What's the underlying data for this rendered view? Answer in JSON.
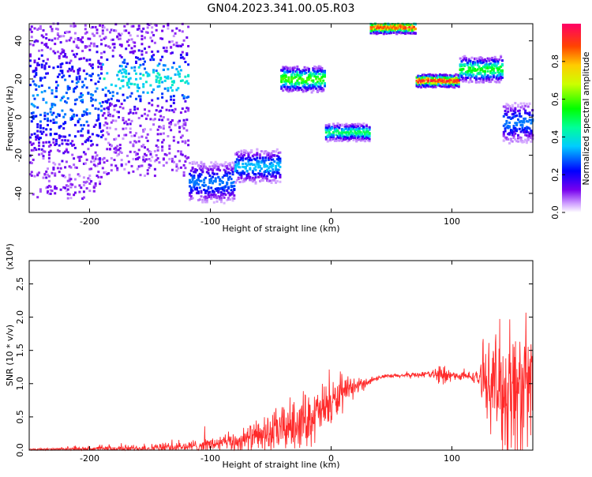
{
  "title": "GN04.2023.341.00.05.R03",
  "chart_data": [
    {
      "type": "heatmap",
      "xlabel": "Height of straight line (km)",
      "ylabel": "Frequency (Hz)",
      "xlim": [
        -250,
        167
      ],
      "ylim": [
        -50,
        49
      ],
      "x_ticks": [
        -200,
        -100,
        0,
        100
      ],
      "x_tick_labels": [
        "-200",
        "-100",
        "0",
        "100"
      ],
      "y_ticks": [
        40,
        20,
        0,
        -20,
        -40
      ],
      "y_tick_labels": [
        "40",
        "20",
        "0",
        "-20",
        "-40"
      ],
      "colorbar": {
        "label": "Normalized spectral amplitude",
        "range": [
          0,
          1
        ],
        "ticks": [
          0.0,
          0.2,
          0.4,
          0.6,
          0.8
        ],
        "tick_labels": [
          "0.0",
          "0.2",
          "0.4",
          "0.6",
          "0.8"
        ]
      },
      "segments": [
        {
          "x0": -250,
          "x1": -190,
          "freq": 8,
          "spread": 14,
          "amp": 0.2,
          "scatter": true
        },
        {
          "x0": -190,
          "x1": -118,
          "freq": 20,
          "spread": 8,
          "amp": 0.3,
          "scatter": true
        },
        {
          "x0": -118,
          "x1": -80,
          "freq": -34,
          "spread": 5,
          "amp": 0.3
        },
        {
          "x0": -80,
          "x1": -42,
          "freq": -26,
          "spread": 4,
          "amp": 0.35
        },
        {
          "x0": -42,
          "x1": -5,
          "freq": 20,
          "spread": 3,
          "amp": 0.6
        },
        {
          "x0": -5,
          "x1": 32,
          "freq": -8,
          "spread": 2,
          "amp": 0.5
        },
        {
          "x0": 32,
          "x1": 70,
          "freq": 47,
          "spread": 1.5,
          "amp": 0.9
        },
        {
          "x0": 70,
          "x1": 106,
          "freq": 19,
          "spread": 1.5,
          "amp": 0.95
        },
        {
          "x0": 106,
          "x1": 142,
          "freq": 25,
          "spread": 3,
          "amp": 0.55
        },
        {
          "x0": 142,
          "x1": 167,
          "freq": -3,
          "spread": 5,
          "amp": 0.3
        }
      ]
    },
    {
      "type": "line",
      "xlabel": "Height of straight line (km)",
      "ylabel": "SNR (10 * v/v)",
      "y_scale_label": "(x10⁴)",
      "xlim": [
        -250,
        167
      ],
      "ylim": [
        0,
        2.85
      ],
      "x_ticks": [
        -200,
        -100,
        0,
        100
      ],
      "x_tick_labels": [
        "-200",
        "-100",
        "0",
        "100"
      ],
      "y_ticks": [
        0.0,
        0.5,
        1.0,
        1.5,
        2.0,
        2.5
      ],
      "y_tick_labels": [
        "0.0",
        "0.5",
        "1.0",
        "1.5",
        "2.0",
        "2.5"
      ],
      "color": "#ff2a2a",
      "envelope": [
        {
          "x": -250,
          "base": 0.01,
          "noise": 0.01
        },
        {
          "x": -200,
          "base": 0.02,
          "noise": 0.03
        },
        {
          "x": -150,
          "base": 0.03,
          "noise": 0.06
        },
        {
          "x": -120,
          "base": 0.05,
          "noise": 0.08
        },
        {
          "x": -80,
          "base": 0.12,
          "noise": 0.15
        },
        {
          "x": -50,
          "base": 0.25,
          "noise": 0.3
        },
        {
          "x": -30,
          "base": 0.4,
          "noise": 0.4
        },
        {
          "x": -10,
          "base": 0.55,
          "noise": 0.4
        },
        {
          "x": 0,
          "base": 0.7,
          "noise": 0.35
        },
        {
          "x": 20,
          "base": 0.95,
          "noise": 0.12
        },
        {
          "x": 40,
          "base": 1.1,
          "noise": 0.03
        },
        {
          "x": 85,
          "base": 1.15,
          "noise": 0.05
        },
        {
          "x": 92,
          "base": 1.1,
          "noise": 0.25
        },
        {
          "x": 100,
          "base": 1.12,
          "noise": 0.06
        },
        {
          "x": 120,
          "base": 1.1,
          "noise": 0.08
        },
        {
          "x": 132,
          "base": 1.0,
          "noise": 0.6
        },
        {
          "x": 145,
          "base": 0.9,
          "noise": 1.1
        },
        {
          "x": 167,
          "base": 0.9,
          "noise": 1.0
        }
      ]
    }
  ]
}
